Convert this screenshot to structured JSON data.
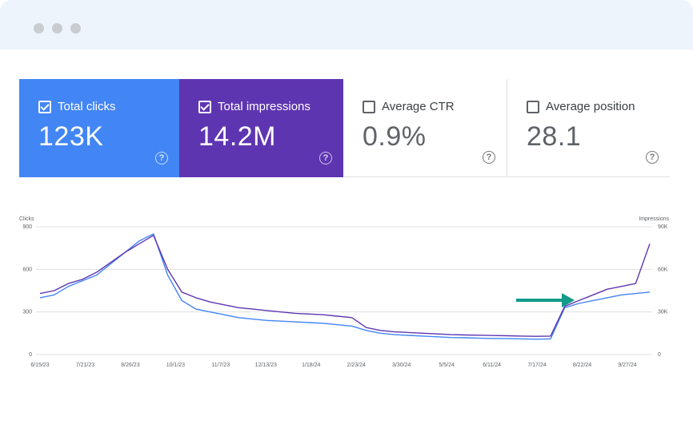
{
  "window": {
    "controls": [
      "dot",
      "dot",
      "dot"
    ]
  },
  "cards": [
    {
      "label": "Total clicks",
      "value": "123K",
      "selected": true,
      "color": "#4285f4",
      "help": "?"
    },
    {
      "label": "Total impressions",
      "value": "14.2M",
      "selected": true,
      "color": "#5e35b1",
      "help": "?"
    },
    {
      "label": "Average CTR",
      "value": "0.9%",
      "selected": false,
      "color": "#ffffff",
      "help": "?"
    },
    {
      "label": "Average position",
      "value": "28.1",
      "selected": false,
      "color": "#ffffff",
      "help": "?"
    }
  ],
  "chart_data": {
    "type": "line",
    "left_axis_title": "Clicks",
    "right_axis_title": "Impressions",
    "left_ticks": [
      "900",
      "600",
      "300",
      "0"
    ],
    "right_ticks": [
      "90K",
      "60K",
      "30K",
      "0"
    ],
    "ylim_left": [
      0,
      900
    ],
    "ylim_right": [
      0,
      90000
    ],
    "x_labels": [
      "6/15/23",
      "7/21/23",
      "8/26/23",
      "10/1/23",
      "11/7/23",
      "12/13/23",
      "1/18/24",
      "2/23/24",
      "3/30/24",
      "5/5/24",
      "6/11/24",
      "7/17/24",
      "8/22/24",
      "9/27/24"
    ],
    "grid": "horizontal",
    "series": [
      {
        "axis": "left",
        "color": "#4285f4",
        "values": [
          400,
          420,
          480,
          520,
          560,
          640,
          720,
          800,
          850,
          560,
          380,
          320,
          300,
          280,
          260,
          250,
          240,
          235,
          230,
          225,
          220,
          210,
          200,
          170,
          150,
          140,
          135,
          130,
          125,
          120,
          118,
          115,
          113,
          112,
          110,
          108,
          110,
          330,
          360,
          380,
          400,
          420,
          430,
          440
        ]
      },
      {
        "axis": "right",
        "color": "#5e35b1",
        "values": [
          43000,
          45000,
          50000,
          53000,
          58000,
          65000,
          72000,
          78000,
          84000,
          60000,
          44000,
          40000,
          37000,
          35000,
          33000,
          32000,
          31000,
          30000,
          29000,
          28500,
          28000,
          27000,
          26000,
          19000,
          17000,
          16000,
          15500,
          15000,
          14500,
          14000,
          13800,
          13600,
          13400,
          13200,
          13000,
          12800,
          13000,
          34000,
          38000,
          42000,
          46000,
          48000,
          50000,
          78000
        ]
      }
    ],
    "annotation": {
      "type": "arrow",
      "color": "#129a8a"
    }
  }
}
